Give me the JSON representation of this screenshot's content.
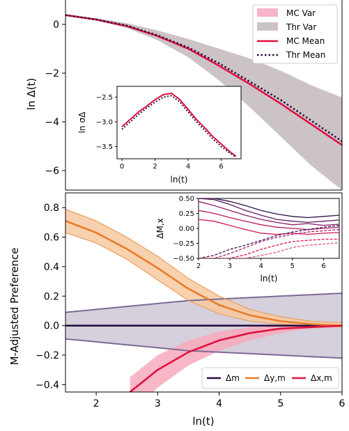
{
  "chart_data": [
    {
      "type": "line",
      "panel": "top",
      "ylabel": "ln Δ(t)",
      "xlim": [
        1.5,
        6.0
      ],
      "ylim": [
        -6.8,
        1.0
      ],
      "y_ticks": [
        0,
        -2,
        -4,
        -6
      ],
      "y_tick_labels": [
        "0",
        "−2",
        "−4",
        "−6"
      ],
      "legend": {
        "placement": "top-right",
        "entries": [
          "MC Var",
          "Thr Var",
          "MC Mean",
          "Thr Mean"
        ]
      },
      "colors": {
        "mc": "#e0113f",
        "mc_var": "#f7b3c8",
        "thr": "#2b1045",
        "thr_var": "#cbc3c6"
      },
      "series": [
        {
          "name": "Thr Mean",
          "x": [
            1.5,
            2.0,
            2.5,
            3.0,
            3.5,
            4.0,
            4.5,
            5.0,
            5.5,
            6.0
          ],
          "values": [
            0.38,
            0.2,
            -0.05,
            -0.45,
            -0.95,
            -1.6,
            -2.35,
            -3.1,
            -3.95,
            -4.8
          ]
        },
        {
          "name": "MC Mean",
          "x": [
            1.5,
            2.0,
            2.5,
            3.0,
            3.5,
            4.0,
            4.5,
            5.0,
            5.5,
            6.0
          ],
          "values": [
            0.38,
            0.2,
            -0.07,
            -0.48,
            -1.0,
            -1.7,
            -2.45,
            -3.25,
            -4.1,
            -4.95
          ]
        },
        {
          "name": "Thr Var",
          "x": [
            1.5,
            2.0,
            2.5,
            3.0,
            3.5,
            4.0,
            4.5,
            5.0,
            5.5,
            6.0
          ],
          "lower": [
            0.35,
            0.15,
            -0.15,
            -0.65,
            -1.35,
            -2.3,
            -3.4,
            -4.6,
            -5.8,
            -6.8
          ],
          "upper": [
            0.4,
            0.25,
            0.05,
            -0.25,
            -0.6,
            -1.0,
            -1.4,
            -1.9,
            -2.5,
            -3.0
          ]
        }
      ]
    },
    {
      "type": "line",
      "panel": "top-inset",
      "xlabel": "ln(t)",
      "ylabel": "ln σΔ",
      "xlim": [
        -0.3,
        7.2
      ],
      "ylim": [
        -3.75,
        -2.28
      ],
      "x_ticks": [
        0,
        2,
        4,
        6
      ],
      "x_tick_labels": [
        "0",
        "2",
        "4",
        "6"
      ],
      "y_ticks": [
        -2.5,
        -3.0,
        -3.5
      ],
      "y_tick_labels": [
        "−2.5",
        "−3.0",
        "−3.5"
      ],
      "series": [
        {
          "name": "MC",
          "x": [
            0,
            0.5,
            1.0,
            1.5,
            2.0,
            2.5,
            3.0,
            3.5,
            4.0,
            4.5,
            5.0,
            5.5,
            6.0,
            6.5,
            6.9
          ],
          "values": [
            -3.1,
            -2.95,
            -2.8,
            -2.68,
            -2.55,
            -2.45,
            -2.42,
            -2.55,
            -2.75,
            -2.95,
            -3.12,
            -3.3,
            -3.45,
            -3.6,
            -3.7
          ]
        },
        {
          "name": "Thr",
          "x": [
            0,
            0.5,
            1.0,
            1.5,
            2.0,
            2.5,
            3.0,
            3.5,
            4.0,
            4.5,
            5.0,
            5.5,
            6.0,
            6.5,
            6.9
          ],
          "values": [
            -3.15,
            -3.0,
            -2.85,
            -2.72,
            -2.6,
            -2.5,
            -2.47,
            -2.6,
            -2.8,
            -3.0,
            -3.17,
            -3.35,
            -3.5,
            -3.63,
            -3.72
          ]
        }
      ]
    },
    {
      "type": "line",
      "panel": "bottom",
      "xlabel": "ln(t)",
      "ylabel": "M-Adjusted Preference",
      "xlim": [
        1.5,
        6.0
      ],
      "ylim": [
        -0.45,
        0.9
      ],
      "x_ticks": [
        2,
        3,
        4,
        5,
        6
      ],
      "x_tick_labels": [
        "2",
        "3",
        "4",
        "5",
        "6"
      ],
      "y_ticks": [
        0.8,
        0.6,
        0.4,
        0.2,
        0.0,
        -0.2,
        -0.4
      ],
      "y_tick_labels": [
        "0.8",
        "0.6",
        "0.4",
        "0.2",
        "0.0",
        "−0.2",
        "−0.4"
      ],
      "legend": {
        "placement": "bottom-right",
        "entries": [
          "Δm",
          "Δy,m",
          "Δx,m"
        ]
      },
      "colors": {
        "m": "#2b1045",
        "m_band": "#d5d0dc",
        "m_edge": "#7b6a96",
        "y": "#e87d2a",
        "y_band": "#f7c9a0",
        "x": "#e0113f",
        "x_band": "#f7aabc"
      },
      "series": [
        {
          "name": "Δm",
          "x": [
            1.5,
            2.0,
            2.5,
            3.0,
            3.5,
            4.0,
            4.5,
            5.0,
            5.5,
            6.0
          ],
          "values": [
            0,
            0,
            0,
            0,
            0,
            0,
            0,
            0,
            0,
            0
          ],
          "lower": [
            -0.09,
            -0.11,
            -0.13,
            -0.15,
            -0.17,
            -0.18,
            -0.19,
            -0.2,
            -0.21,
            -0.22
          ],
          "upper": [
            0.09,
            0.11,
            0.13,
            0.15,
            0.17,
            0.18,
            0.19,
            0.2,
            0.21,
            0.22
          ]
        },
        {
          "name": "Δy,m",
          "x": [
            1.5,
            2.0,
            2.5,
            3.0,
            3.5,
            4.0,
            4.5,
            5.0,
            5.5,
            6.0
          ],
          "values": [
            0.71,
            0.63,
            0.52,
            0.39,
            0.25,
            0.14,
            0.07,
            0.03,
            0.01,
            0.0
          ],
          "lower": [
            0.63,
            0.56,
            0.45,
            0.31,
            0.17,
            0.08,
            0.03,
            0.01,
            0.0,
            -0.01
          ],
          "upper": [
            0.79,
            0.71,
            0.6,
            0.47,
            0.32,
            0.2,
            0.11,
            0.06,
            0.03,
            0.02
          ]
        },
        {
          "name": "Δx,m",
          "x": [
            2.55,
            3.0,
            3.5,
            4.0,
            4.5,
            5.0,
            5.5,
            6.0
          ],
          "values": [
            -0.45,
            -0.3,
            -0.18,
            -0.1,
            -0.05,
            -0.02,
            -0.01,
            0.0
          ],
          "lower": [
            -0.6,
            -0.42,
            -0.27,
            -0.17,
            -0.1,
            -0.05,
            -0.02,
            -0.01
          ],
          "upper": [
            -0.35,
            -0.2,
            -0.1,
            -0.04,
            -0.01,
            0.0,
            0.0,
            0.0
          ]
        }
      ]
    },
    {
      "type": "line",
      "panel": "bottom-inset",
      "xlabel": "ln(t)",
      "ylabel": "ΔM,x",
      "xlim": [
        2.0,
        6.5
      ],
      "ylim": [
        -0.5,
        0.5
      ],
      "x_ticks": [
        2,
        3,
        4,
        5,
        6
      ],
      "x_tick_labels": [
        "2",
        "3",
        "4",
        "5",
        "6"
      ],
      "y_ticks": [
        0.5,
        0.25,
        0.0,
        -0.25,
        -0.5
      ],
      "y_tick_labels": [
        "0.50",
        "0.25",
        "0.00",
        "−0.25",
        "−0.50"
      ],
      "series": [
        {
          "x": [
            2.0,
            2.5,
            3.0,
            3.5,
            4.0,
            4.5,
            5.0,
            5.5,
            6.0,
            6.5
          ],
          "values": [
            0.5,
            0.5,
            0.45,
            0.38,
            0.3,
            0.24,
            0.2,
            0.18,
            0.2,
            0.22
          ],
          "color": "#2b1045"
        },
        {
          "x": [
            2.0,
            2.5,
            3.0,
            3.5,
            4.0,
            4.5,
            5.0,
            5.5,
            6.0,
            6.5
          ],
          "values": [
            0.5,
            0.48,
            0.4,
            0.3,
            0.22,
            0.15,
            0.12,
            0.1,
            0.12,
            0.14
          ],
          "color": "#5a1e63"
        },
        {
          "x": [
            2.0,
            2.5,
            3.0,
            3.5,
            4.0,
            4.5,
            5.0,
            5.5,
            6.0,
            6.5
          ],
          "values": [
            0.45,
            0.38,
            0.3,
            0.22,
            0.15,
            0.1,
            0.06,
            0.08,
            0.05,
            0.07
          ],
          "color": "#8c1d6b"
        },
        {
          "x": [
            2.0,
            2.5,
            3.0,
            3.5,
            4.0,
            4.5,
            5.0,
            5.5,
            6.0,
            6.5
          ],
          "values": [
            0.3,
            0.25,
            0.18,
            0.12,
            0.06,
            0.02,
            0.0,
            -0.02,
            0.0,
            0.02
          ],
          "color": "#b51a5e"
        },
        {
          "x": [
            2.0,
            2.5,
            3.0,
            3.5,
            4.0,
            4.5,
            5.0,
            5.5,
            6.0,
            6.5
          ],
          "values": [
            0.15,
            0.12,
            0.05,
            -0.02,
            -0.08,
            -0.1,
            -0.08,
            -0.1,
            -0.08,
            -0.07
          ],
          "color": "#d21650"
        },
        {
          "x": [
            2.0,
            2.5,
            3.0,
            3.5,
            4.0,
            4.5,
            5.0,
            5.5,
            6.0,
            6.5
          ],
          "values": [
            -0.5,
            -0.45,
            -0.35,
            -0.28,
            -0.2,
            -0.12,
            -0.06,
            -0.02,
            0.02,
            0.05
          ],
          "color": "#3e1556",
          "dashed": true
        },
        {
          "x": [
            2.0,
            2.5,
            3.0,
            3.5,
            4.0,
            4.5,
            5.0,
            5.5,
            6.0,
            6.5
          ],
          "values": [
            -0.5,
            -0.5,
            -0.42,
            -0.32,
            -0.22,
            -0.15,
            -0.1,
            -0.06,
            -0.04,
            -0.02
          ],
          "color": "#a31b66",
          "dashed": true
        },
        {
          "x": [
            2.0,
            2.5,
            3.0,
            3.5,
            4.0,
            4.5,
            5.0,
            5.5,
            6.0,
            6.5
          ],
          "values": [
            -0.5,
            -0.5,
            -0.5,
            -0.44,
            -0.35,
            -0.28,
            -0.22,
            -0.2,
            -0.18,
            -0.18
          ],
          "color": "#e0113f",
          "dashed": true
        },
        {
          "x": [
            2.0,
            2.5,
            3.0,
            3.5,
            4.0,
            4.5,
            5.0,
            5.5,
            6.0,
            6.5
          ],
          "values": [
            -0.5,
            -0.5,
            -0.5,
            -0.5,
            -0.45,
            -0.4,
            -0.32,
            -0.28,
            -0.26,
            -0.24
          ],
          "color": "#e8527a",
          "dashed": true
        }
      ]
    }
  ]
}
